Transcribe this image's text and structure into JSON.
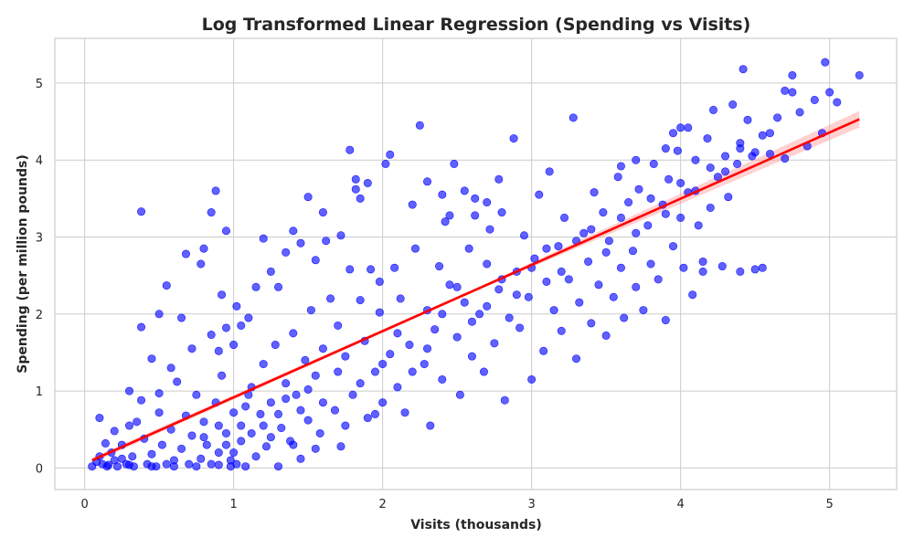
{
  "chart_data": {
    "type": "scatter",
    "title": "Log Transformed Linear Regression (Spending vs Visits)",
    "xlabel": "Visits (thousands)",
    "ylabel": "Spending (per million pounds)",
    "xlim": [
      -0.2,
      5.45
    ],
    "ylim": [
      -0.28,
      5.58
    ],
    "xticks": [
      0,
      1,
      2,
      3,
      4,
      5
    ],
    "yticks": [
      0,
      1,
      2,
      3,
      4,
      5
    ],
    "grid": true,
    "legend": "none",
    "colors": {
      "points": "#0000ff",
      "regression": "#ff0000",
      "band": "#ff9999"
    },
    "series": [
      {
        "type": "scatter",
        "points": [
          [
            0.05,
            0.02
          ],
          [
            0.08,
            0.08
          ],
          [
            0.1,
            0.15
          ],
          [
            0.12,
            0.05
          ],
          [
            0.14,
            0.32
          ],
          [
            0.16,
            0.04
          ],
          [
            0.18,
            0.2
          ],
          [
            0.2,
            0.1
          ],
          [
            0.1,
            0.65
          ],
          [
            0.2,
            0.48
          ],
          [
            0.22,
            0.02
          ],
          [
            0.25,
            0.3
          ],
          [
            0.28,
            0.05
          ],
          [
            0.3,
            0.55
          ],
          [
            0.32,
            0.15
          ],
          [
            0.35,
            0.6
          ],
          [
            0.33,
            0.02
          ],
          [
            0.3,
            1.0
          ],
          [
            0.4,
            0.38
          ],
          [
            0.42,
            0.05
          ],
          [
            0.38,
            0.88
          ],
          [
            0.45,
            0.18
          ],
          [
            0.48,
            0.02
          ],
          [
            0.5,
            0.72
          ],
          [
            0.52,
            0.3
          ],
          [
            0.55,
            0.05
          ],
          [
            0.58,
            0.5
          ],
          [
            0.5,
            0.97
          ],
          [
            0.6,
            0.1
          ],
          [
            0.62,
            1.12
          ],
          [
            0.65,
            0.25
          ],
          [
            0.68,
            0.68
          ],
          [
            0.7,
            0.05
          ],
          [
            0.72,
            0.42
          ],
          [
            0.58,
            1.3
          ],
          [
            0.75,
            0.95
          ],
          [
            0.78,
            0.12
          ],
          [
            0.8,
            0.6
          ],
          [
            0.82,
            0.3
          ],
          [
            0.85,
            0.05
          ],
          [
            0.88,
            0.85
          ],
          [
            0.9,
            0.2
          ],
          [
            0.92,
            1.2
          ],
          [
            0.95,
            0.45
          ],
          [
            0.98,
            0.1
          ],
          [
            1.0,
            0.72
          ],
          [
            1.02,
            0.05
          ],
          [
            1.05,
            0.35
          ],
          [
            0.55,
            2.37
          ],
          [
            0.38,
            3.33
          ],
          [
            0.5,
            2.0
          ],
          [
            0.38,
            1.83
          ],
          [
            0.45,
            1.42
          ],
          [
            0.68,
            2.78
          ],
          [
            0.8,
            2.85
          ],
          [
            0.78,
            2.65
          ],
          [
            0.85,
            3.32
          ],
          [
            0.88,
            3.6
          ],
          [
            0.95,
            3.08
          ],
          [
            0.92,
            2.25
          ],
          [
            0.72,
            1.55
          ],
          [
            0.65,
            1.95
          ],
          [
            0.85,
            1.73
          ],
          [
            0.9,
            1.52
          ],
          [
            0.95,
            1.82
          ],
          [
            1.0,
            1.6
          ],
          [
            1.05,
            1.85
          ],
          [
            1.02,
            2.1
          ],
          [
            1.1,
            1.95
          ],
          [
            1.15,
            2.35
          ],
          [
            1.1,
            0.95
          ],
          [
            1.12,
            0.45
          ],
          [
            1.15,
            0.15
          ],
          [
            1.18,
            0.7
          ],
          [
            1.2,
            1.35
          ],
          [
            1.22,
            0.28
          ],
          [
            1.25,
            0.85
          ],
          [
            1.28,
            1.6
          ],
          [
            1.3,
            0.02
          ],
          [
            1.32,
            0.52
          ],
          [
            1.35,
            1.1
          ],
          [
            1.38,
            0.35
          ],
          [
            1.4,
            1.75
          ],
          [
            1.42,
            0.95
          ],
          [
            1.45,
            0.12
          ],
          [
            1.48,
            1.4
          ],
          [
            1.5,
            0.62
          ],
          [
            1.52,
            2.05
          ],
          [
            1.55,
            1.2
          ],
          [
            1.58,
            0.45
          ],
          [
            1.6,
            1.55
          ],
          [
            1.2,
            2.98
          ],
          [
            1.25,
            2.55
          ],
          [
            1.3,
            2.35
          ],
          [
            1.35,
            2.8
          ],
          [
            1.4,
            3.08
          ],
          [
            1.45,
            2.92
          ],
          [
            1.5,
            3.52
          ],
          [
            1.55,
            2.7
          ],
          [
            1.6,
            3.32
          ],
          [
            1.62,
            2.95
          ],
          [
            1.65,
            2.2
          ],
          [
            1.68,
            0.75
          ],
          [
            1.7,
            1.85
          ],
          [
            1.72,
            0.28
          ],
          [
            1.75,
            1.45
          ],
          [
            1.78,
            2.58
          ],
          [
            1.8,
            0.95
          ],
          [
            1.82,
            3.62
          ],
          [
            1.85,
            2.18
          ],
          [
            1.88,
            1.65
          ],
          [
            1.9,
            0.65
          ],
          [
            1.92,
            2.58
          ],
          [
            1.95,
            1.25
          ],
          [
            1.98,
            2.02
          ],
          [
            2.0,
            0.85
          ],
          [
            2.02,
            3.95
          ],
          [
            2.05,
            1.48
          ],
          [
            2.08,
            2.6
          ],
          [
            1.78,
            4.13
          ],
          [
            1.82,
            3.75
          ],
          [
            1.85,
            3.5
          ],
          [
            1.72,
            3.02
          ],
          [
            1.98,
            2.42
          ],
          [
            1.9,
            3.7
          ],
          [
            2.05,
            4.07
          ],
          [
            2.1,
            1.05
          ],
          [
            2.12,
            2.2
          ],
          [
            2.15,
            0.72
          ],
          [
            2.18,
            1.6
          ],
          [
            2.2,
            3.42
          ],
          [
            2.22,
            2.85
          ],
          [
            2.25,
            4.45
          ],
          [
            2.28,
            1.35
          ],
          [
            2.3,
            2.05
          ],
          [
            2.32,
            0.55
          ],
          [
            2.35,
            1.8
          ],
          [
            2.38,
            2.62
          ],
          [
            2.4,
            1.15
          ],
          [
            2.42,
            3.2
          ],
          [
            2.45,
            2.38
          ],
          [
            2.48,
            3.95
          ],
          [
            2.5,
            1.7
          ],
          [
            2.52,
            0.95
          ],
          [
            2.55,
            2.15
          ],
          [
            2.58,
            2.85
          ],
          [
            2.6,
            1.45
          ],
          [
            2.62,
            3.5
          ],
          [
            2.65,
            2.0
          ],
          [
            2.68,
            1.25
          ],
          [
            2.7,
            2.65
          ],
          [
            2.72,
            3.1
          ],
          [
            2.75,
            1.62
          ],
          [
            2.78,
            2.32
          ],
          [
            2.8,
            3.32
          ],
          [
            2.82,
            0.88
          ],
          [
            2.85,
            1.95
          ],
          [
            2.88,
            4.28
          ],
          [
            2.9,
            2.55
          ],
          [
            2.92,
            1.82
          ],
          [
            2.95,
            3.02
          ],
          [
            2.98,
            2.22
          ],
          [
            3.0,
            1.15
          ],
          [
            3.02,
            2.72
          ],
          [
            3.05,
            3.55
          ],
          [
            3.08,
            1.52
          ],
          [
            3.1,
            2.42
          ],
          [
            3.12,
            3.85
          ],
          [
            2.3,
            3.72
          ],
          [
            2.4,
            3.55
          ],
          [
            2.45,
            3.28
          ],
          [
            2.62,
            3.28
          ],
          [
            2.55,
            3.6
          ],
          [
            2.7,
            3.45
          ],
          [
            2.78,
            3.75
          ],
          [
            3.15,
            2.05
          ],
          [
            3.18,
            2.88
          ],
          [
            3.2,
            1.78
          ],
          [
            3.22,
            3.25
          ],
          [
            3.25,
            2.45
          ],
          [
            3.28,
            4.55
          ],
          [
            3.3,
            1.42
          ],
          [
            3.32,
            2.15
          ],
          [
            3.35,
            3.05
          ],
          [
            3.38,
            2.68
          ],
          [
            3.4,
            1.88
          ],
          [
            3.42,
            3.58
          ],
          [
            3.45,
            2.38
          ],
          [
            3.48,
            3.32
          ],
          [
            3.5,
            1.72
          ],
          [
            3.52,
            2.95
          ],
          [
            3.55,
            2.22
          ],
          [
            3.58,
            3.78
          ],
          [
            3.6,
            2.6
          ],
          [
            3.62,
            1.95
          ],
          [
            3.65,
            3.45
          ],
          [
            3.68,
            2.82
          ],
          [
            3.7,
            2.35
          ],
          [
            3.72,
            3.62
          ],
          [
            3.75,
            2.05
          ],
          [
            3.78,
            3.15
          ],
          [
            3.8,
            2.65
          ],
          [
            3.82,
            3.95
          ],
          [
            3.85,
            2.45
          ],
          [
            3.88,
            3.42
          ],
          [
            3.9,
            1.92
          ],
          [
            3.92,
            3.75
          ],
          [
            3.95,
            2.88
          ],
          [
            3.98,
            4.12
          ],
          [
            4.0,
            3.25
          ],
          [
            4.02,
            2.6
          ],
          [
            4.05,
            3.58
          ],
          [
            4.08,
            2.25
          ],
          [
            4.1,
            4.0
          ],
          [
            4.12,
            3.15
          ],
          [
            4.15,
            2.55
          ],
          [
            4.18,
            4.28
          ],
          [
            4.2,
            3.38
          ],
          [
            4.22,
            4.65
          ],
          [
            4.25,
            3.78
          ],
          [
            4.28,
            2.62
          ],
          [
            4.3,
            4.05
          ],
          [
            4.32,
            3.52
          ],
          [
            4.35,
            4.72
          ],
          [
            4.38,
            3.95
          ],
          [
            4.4,
            4.22
          ],
          [
            4.42,
            5.18
          ],
          [
            4.45,
            4.52
          ],
          [
            4.48,
            4.05
          ],
          [
            4.5,
            2.58
          ],
          [
            4.55,
            4.32
          ],
          [
            4.6,
            4.08
          ],
          [
            4.65,
            4.55
          ],
          [
            4.7,
            4.02
          ],
          [
            4.75,
            4.88
          ],
          [
            4.8,
            4.62
          ],
          [
            4.85,
            4.18
          ],
          [
            4.9,
            4.78
          ],
          [
            4.95,
            4.35
          ],
          [
            4.97,
            5.27
          ],
          [
            5.0,
            4.88
          ],
          [
            5.05,
            4.75
          ],
          [
            5.2,
            5.1
          ],
          [
            4.75,
            5.1
          ],
          [
            4.7,
            4.9
          ],
          [
            4.55,
            2.6
          ],
          [
            4.4,
            2.55
          ],
          [
            4.15,
            2.68
          ],
          [
            4.05,
            4.42
          ],
          [
            3.9,
            4.15
          ],
          [
            3.95,
            4.35
          ],
          [
            4.0,
            4.42
          ],
          [
            3.6,
            3.92
          ],
          [
            3.7,
            4.0
          ],
          [
            0.15,
            0.02
          ],
          [
            0.25,
            0.12
          ],
          [
            0.3,
            0.04
          ],
          [
            0.45,
            0.02
          ],
          [
            0.6,
            0.02
          ],
          [
            0.75,
            0.02
          ],
          [
            0.9,
            0.04
          ],
          [
            0.98,
            0.02
          ],
          [
            1.08,
            0.02
          ],
          [
            0.8,
            0.4
          ],
          [
            0.9,
            0.55
          ],
          [
            0.95,
            0.3
          ],
          [
            1.0,
            0.2
          ],
          [
            1.05,
            0.55
          ],
          [
            1.08,
            0.8
          ],
          [
            1.12,
            1.05
          ],
          [
            1.2,
            0.55
          ],
          [
            1.25,
            0.4
          ],
          [
            1.3,
            0.7
          ],
          [
            1.35,
            0.9
          ],
          [
            1.4,
            0.3
          ],
          [
            1.45,
            0.75
          ],
          [
            1.5,
            1.02
          ],
          [
            1.55,
            0.25
          ],
          [
            1.6,
            0.85
          ],
          [
            1.7,
            1.25
          ],
          [
            1.75,
            0.55
          ],
          [
            1.85,
            1.1
          ],
          [
            1.95,
            0.7
          ],
          [
            2.0,
            1.35
          ],
          [
            2.1,
            1.75
          ],
          [
            2.2,
            1.25
          ],
          [
            2.3,
            1.55
          ],
          [
            2.4,
            2.0
          ],
          [
            2.5,
            2.35
          ],
          [
            2.6,
            1.9
          ],
          [
            2.7,
            2.1
          ],
          [
            2.8,
            2.45
          ],
          [
            2.9,
            2.25
          ],
          [
            3.0,
            2.6
          ],
          [
            3.1,
            2.85
          ],
          [
            3.2,
            2.55
          ],
          [
            3.3,
            2.95
          ],
          [
            3.4,
            3.1
          ],
          [
            3.5,
            2.8
          ],
          [
            3.6,
            3.25
          ],
          [
            3.7,
            3.05
          ],
          [
            3.8,
            3.5
          ],
          [
            3.9,
            3.3
          ],
          [
            4.0,
            3.7
          ],
          [
            4.1,
            3.6
          ],
          [
            4.2,
            3.9
          ],
          [
            4.3,
            3.85
          ],
          [
            4.4,
            4.15
          ],
          [
            4.5,
            4.1
          ],
          [
            4.6,
            4.35
          ]
        ]
      },
      {
        "type": "regression",
        "points": [
          [
            0.05,
            0.1
          ],
          [
            5.2,
            4.53
          ]
        ]
      }
    ]
  }
}
